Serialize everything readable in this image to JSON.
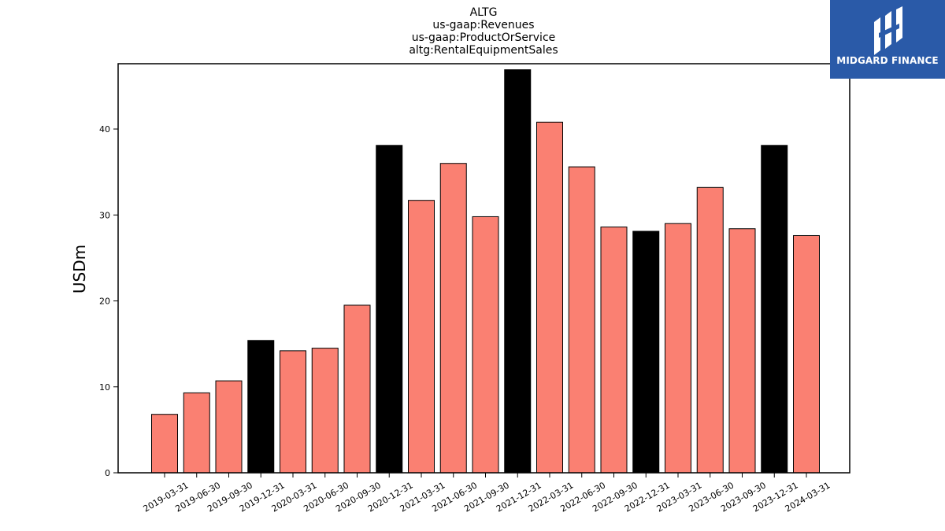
{
  "logo": {
    "text": "MIDGARD FINANCE"
  },
  "chart_data": {
    "type": "bar",
    "title_lines": [
      "ALTG",
      "us-gaap:Revenues",
      "us-gaap:ProductOrService",
      "altg:RentalEquipmentSales"
    ],
    "ylabel": "USDm",
    "xlabel": "",
    "ylim": [
      0,
      47.6
    ],
    "yticks": [
      0,
      10,
      20,
      30,
      40
    ],
    "grid": false,
    "categories": [
      "2019-03-31",
      "2019-06-30",
      "2019-09-30",
      "2019-12-31",
      "2020-03-31",
      "2020-06-30",
      "2020-09-30",
      "2020-12-31",
      "2021-03-31",
      "2021-06-30",
      "2021-09-30",
      "2021-12-31",
      "2022-03-31",
      "2022-06-30",
      "2022-09-30",
      "2022-12-31",
      "2023-03-31",
      "2023-06-30",
      "2023-09-30",
      "2023-12-31",
      "2024-03-31"
    ],
    "values": [
      6.8,
      9.3,
      10.7,
      15.4,
      14.2,
      14.5,
      19.5,
      38.1,
      31.7,
      36.0,
      29.8,
      46.9,
      40.8,
      35.6,
      28.6,
      28.1,
      29.0,
      33.2,
      28.4,
      38.1,
      27.6
    ],
    "colors": {
      "quarter": "#fa8072",
      "year_end": "#000000",
      "edge": "#000000"
    },
    "year_end_categories": [
      "2019-12-31",
      "2020-12-31",
      "2021-12-31",
      "2022-12-31",
      "2023-12-31"
    ]
  }
}
